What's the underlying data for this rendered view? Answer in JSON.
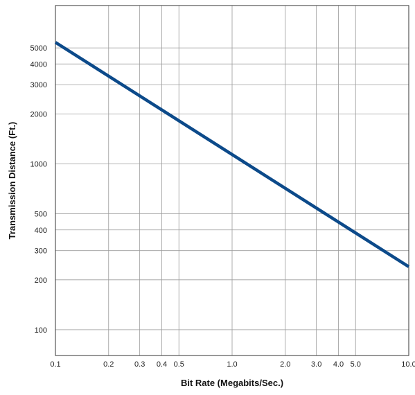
{
  "chart_data": {
    "type": "line",
    "title": "",
    "xlabel": "Bit Rate (Megabits/Sec.)",
    "ylabel": "Transmission Distance (Ft.)",
    "x_scale": "log",
    "y_scale": "log",
    "xlim": [
      0.1,
      10.0
    ],
    "ylim": [
      70,
      9000
    ],
    "grid": true,
    "x_ticks": [
      {
        "value": 0.1,
        "label": "0.1"
      },
      {
        "value": 0.2,
        "label": "0.2"
      },
      {
        "value": 0.3,
        "label": "0.3"
      },
      {
        "value": 0.4,
        "label": "0.4"
      },
      {
        "value": 0.5,
        "label": "0.5"
      },
      {
        "value": 1.0,
        "label": "1.0"
      },
      {
        "value": 2.0,
        "label": "2.0"
      },
      {
        "value": 3.0,
        "label": "3.0"
      },
      {
        "value": 4.0,
        "label": "4.0"
      },
      {
        "value": 5.0,
        "label": "5.0"
      },
      {
        "value": 10.0,
        "label": "10.0"
      }
    ],
    "y_ticks": [
      {
        "value": 100,
        "label": "100"
      },
      {
        "value": 200,
        "label": "200"
      },
      {
        "value": 300,
        "label": "300"
      },
      {
        "value": 400,
        "label": "400"
      },
      {
        "value": 500,
        "label": "500"
      },
      {
        "value": 1000,
        "label": "1000"
      },
      {
        "value": 2000,
        "label": "2000"
      },
      {
        "value": 3000,
        "label": "3000"
      },
      {
        "value": 4000,
        "label": "4000"
      },
      {
        "value": 5000,
        "label": "5000"
      }
    ],
    "series": [
      {
        "color": "#0c4a8a",
        "points": [
          {
            "x": 0.1,
            "y": 5400
          },
          {
            "x": 10.0,
            "y": 240
          }
        ]
      }
    ]
  }
}
